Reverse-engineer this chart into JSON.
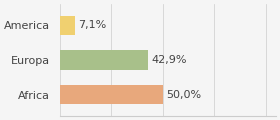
{
  "categories": [
    "America",
    "Europa",
    "Africa"
  ],
  "values": [
    7.1,
    42.9,
    50.0
  ],
  "labels": [
    "7,1%",
    "42,9%",
    "50,0%"
  ],
  "bar_colors": [
    "#f0d070",
    "#a8c08a",
    "#e8a87c"
  ],
  "background_color": "#f5f5f5",
  "xlim": [
    0,
    105
  ],
  "bar_height": 0.55,
  "label_fontsize": 8.0,
  "tick_fontsize": 8.0,
  "grid_color": "#cccccc",
  "text_color": "#444444"
}
